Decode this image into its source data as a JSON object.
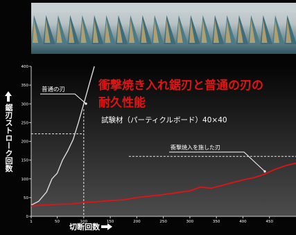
{
  "title_line1": "衝撃焼き入れ鋸刃と普通の刃の",
  "title_line2": "耐久性能",
  "subtitle": "試験材（パーティクルボード）40×40",
  "y_axis_label": "鋸刃ストローク回数",
  "x_axis_label": "切断回数",
  "colors": {
    "normal_blade": "#dcdcdc",
    "impact_blade": "#e01414",
    "background_top": "#050505",
    "background_bottom": "#4c4c4c"
  },
  "chart_data": {
    "type": "line",
    "xlabel": "切断回数",
    "ylabel": "鋸刃ストローク回数",
    "xlim": [
      1,
      500
    ],
    "ylim": [
      0,
      400
    ],
    "x_ticks": [
      1,
      50,
      100,
      150,
      200,
      250,
      300,
      350,
      400,
      450
    ],
    "y_ticks": [
      0,
      50,
      100,
      150,
      200,
      250,
      300,
      350,
      400
    ],
    "series": [
      {
        "name": "普通の刃",
        "color": "#dcdcdc",
        "points": [
          [
            1,
            30
          ],
          [
            15,
            40
          ],
          [
            30,
            65
          ],
          [
            40,
            100
          ],
          [
            50,
            115
          ],
          [
            60,
            150
          ],
          [
            70,
            175
          ],
          [
            80,
            205
          ],
          [
            90,
            250
          ],
          [
            100,
            300
          ],
          [
            110,
            350
          ],
          [
            120,
            400
          ]
        ]
      },
      {
        "name": "衝撃焼入を施した刃",
        "color": "#e01414",
        "points": [
          [
            1,
            28
          ],
          [
            25,
            30
          ],
          [
            50,
            32
          ],
          [
            75,
            33
          ],
          [
            100,
            37
          ],
          [
            125,
            39
          ],
          [
            150,
            42
          ],
          [
            175,
            44
          ],
          [
            200,
            50
          ],
          [
            225,
            54
          ],
          [
            250,
            58
          ],
          [
            275,
            63
          ],
          [
            300,
            68
          ],
          [
            320,
            78
          ],
          [
            340,
            75
          ],
          [
            360,
            82
          ],
          [
            380,
            90
          ],
          [
            400,
            97
          ],
          [
            420,
            103
          ],
          [
            440,
            112
          ],
          [
            460,
            125
          ],
          [
            480,
            135
          ],
          [
            500,
            142
          ]
        ]
      }
    ],
    "reference_lines": [
      {
        "type": "vertical",
        "x": 100
      },
      {
        "type": "horizontal",
        "y": 220,
        "x_range": [
          1,
          100
        ]
      },
      {
        "type": "horizontal",
        "y": 160,
        "x_range": [
          185,
          500
        ]
      }
    ]
  }
}
